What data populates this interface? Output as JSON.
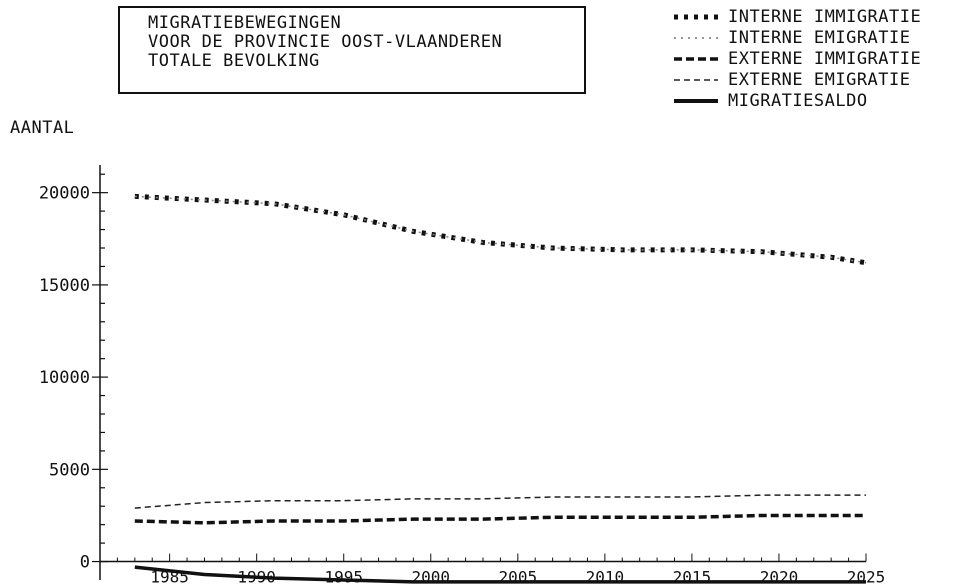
{
  "title_lines": [
    "MIGRATIEBEWEGINGEN",
    "VOOR DE PROVINCIE OOST-VLAANDEREN",
    "TOTALE BEVOLKING"
  ],
  "chart_data": {
    "type": "line",
    "title": "MIGRATIEBEWEGINGEN VOOR DE PROVINCIE OOST-VLAANDEREN TOTALE BEVOLKING",
    "xlabel": "",
    "ylabel": "AANTAL",
    "xlim": [
      1981,
      2025
    ],
    "ylim": [
      -1000,
      21500
    ],
    "x_ticks": [
      1985,
      1990,
      1995,
      2000,
      2005,
      2010,
      2015,
      2020,
      2025
    ],
    "y_ticks": [
      0,
      5000,
      10000,
      15000,
      20000
    ],
    "legend_position": "top-right",
    "x": [
      1983,
      1987,
      1991,
      1995,
      1999,
      2003,
      2007,
      2011,
      2015,
      2019,
      2023,
      2025
    ],
    "series": [
      {
        "name": "INTERNE IMMIGRATIE",
        "style": "dotted-heavy",
        "values": [
          19800,
          19600,
          19400,
          18800,
          17900,
          17300,
          17000,
          16900,
          16900,
          16800,
          16500,
          16200
        ]
      },
      {
        "name": "INTERNE EMIGRATIE",
        "style": "dotted-light",
        "values": [
          19800,
          19600,
          19400,
          18800,
          17900,
          17300,
          17000,
          16900,
          16900,
          16800,
          16500,
          16200
        ]
      },
      {
        "name": "EXTERNE IMMIGRATIE",
        "style": "dashed-heavy",
        "values": [
          2200,
          2100,
          2200,
          2200,
          2300,
          2300,
          2400,
          2400,
          2400,
          2500,
          2500,
          2500
        ]
      },
      {
        "name": "EXTERNE EMIGRATIE",
        "style": "dashed-light",
        "values": [
          2900,
          3200,
          3300,
          3300,
          3400,
          3400,
          3500,
          3500,
          3500,
          3600,
          3600,
          3600
        ]
      },
      {
        "name": "MIGRATIESALDO",
        "style": "solid",
        "values": [
          -300,
          -700,
          -900,
          -1000,
          -1100,
          -1100,
          -1100,
          -1100,
          -1100,
          -1100,
          -1100,
          -1100
        ]
      }
    ]
  }
}
